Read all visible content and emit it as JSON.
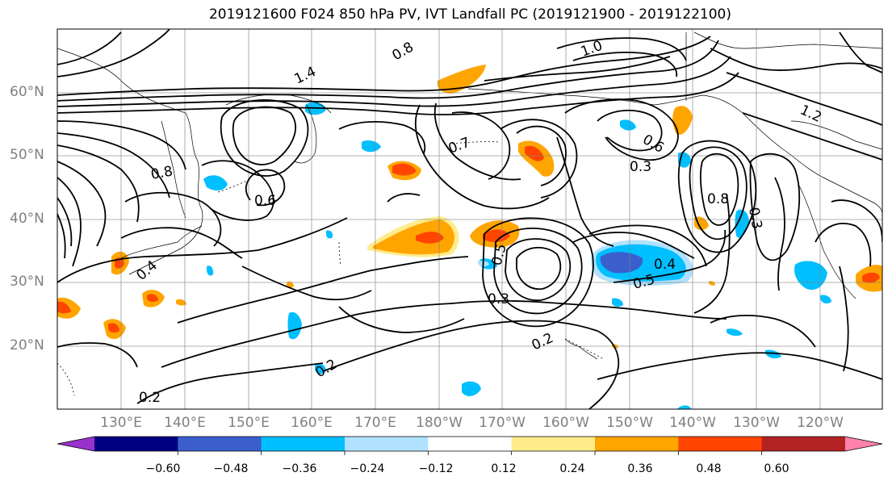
{
  "title": "2019121600 F024 850 hPa PV, IVT Landfall PC (2019121900 - 2019122100)",
  "lat_labels": [
    "60°N",
    "50°N",
    "40°N",
    "30°N",
    "20°N"
  ],
  "lon_labels": [
    "130°E",
    "140°E",
    "150°E",
    "160°E",
    "170°E",
    "180°W",
    "170°W",
    "160°W",
    "150°W",
    "140°W",
    "130°W",
    "120°W"
  ],
  "colorbar": {
    "colors": [
      "#9932cc",
      "#000080",
      "#3a5fcd",
      "#00bfff",
      "#b0e2ff",
      "#ffffff",
      "#ffec8b",
      "#ffa500",
      "#ff4500",
      "#b22222",
      "#ff82ab"
    ],
    "tick_labels": [
      "−0.60",
      "−0.48",
      "−0.36",
      "−0.24",
      "−0.12",
      "0.12",
      "0.24",
      "0.36",
      "0.48",
      "0.60"
    ]
  },
  "contour_labels": [
    "0.2",
    "0.2",
    "0.2",
    "0.3",
    "0.3",
    "0.3",
    "0.4",
    "0.4",
    "0.5",
    "0.5",
    "0.6",
    "0.6",
    "0.7",
    "0.8",
    "0.8",
    "0.8",
    "1.0",
    "1.2",
    "1.4"
  ]
}
